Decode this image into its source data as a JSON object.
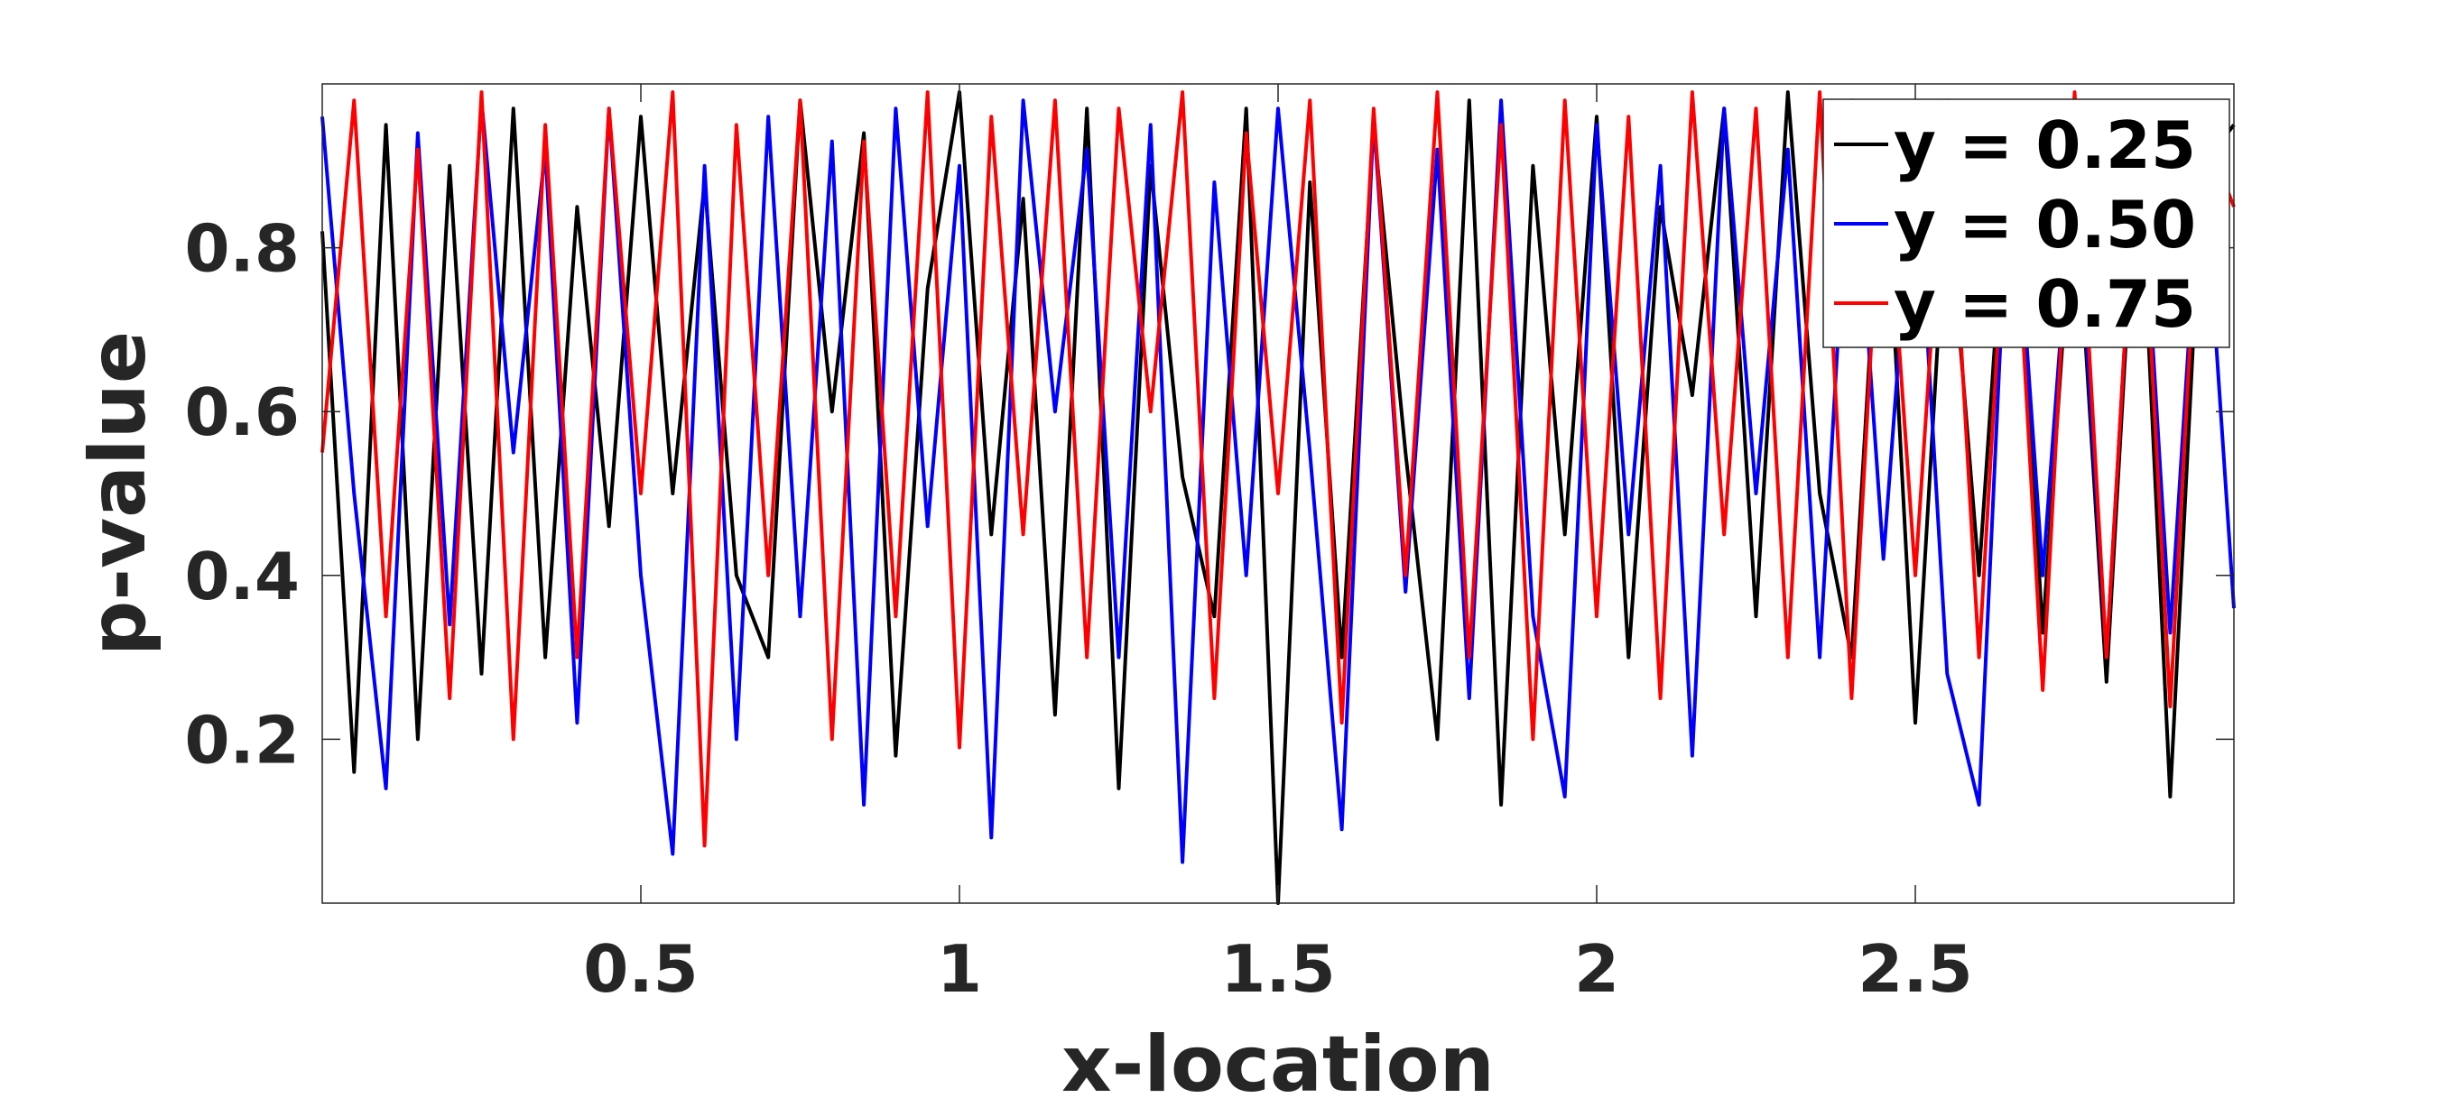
{
  "chart_data": {
    "type": "line",
    "title": "",
    "xlabel": "x-location",
    "ylabel": "p-value",
    "xlim": [
      0.0,
      3.0
    ],
    "ylim": [
      0.0,
      1.0
    ],
    "xticks": [
      0.5,
      1,
      1.5,
      2,
      2.5
    ],
    "xtick_labels": [
      "0.5",
      "1",
      "1.5",
      "2",
      "2.5"
    ],
    "yticks": [
      0.2,
      0.4,
      0.6,
      0.8
    ],
    "ytick_labels": [
      "0.2",
      "0.4",
      "0.6",
      "0.8"
    ],
    "grid": false,
    "legend_position": "top-right",
    "x": [
      0.0,
      0.05,
      0.1,
      0.15,
      0.2,
      0.25,
      0.3,
      0.35,
      0.4,
      0.45,
      0.5,
      0.55,
      0.6,
      0.65,
      0.7,
      0.75,
      0.8,
      0.85,
      0.9,
      0.95,
      1.0,
      1.05,
      1.1,
      1.15,
      1.2,
      1.25,
      1.3,
      1.35,
      1.4,
      1.45,
      1.5,
      1.55,
      1.6,
      1.65,
      1.7,
      1.75,
      1.8,
      1.85,
      1.9,
      1.95,
      2.0,
      2.05,
      2.1,
      2.15,
      2.2,
      2.25,
      2.3,
      2.35,
      2.4,
      2.45,
      2.5,
      2.55,
      2.6,
      2.65,
      2.7,
      2.75,
      2.8,
      2.85,
      2.9,
      2.95,
      3.0
    ],
    "series": [
      {
        "name": "y = 0.25",
        "color": "#000000",
        "values": [
          0.82,
          0.16,
          0.95,
          0.2,
          0.9,
          0.28,
          0.97,
          0.3,
          0.85,
          0.46,
          0.96,
          0.5,
          0.88,
          0.4,
          0.3,
          0.98,
          0.6,
          0.94,
          0.18,
          0.75,
          0.99,
          0.45,
          0.86,
          0.23,
          0.97,
          0.14,
          0.9,
          0.52,
          0.35,
          0.97,
          0.0,
          0.88,
          0.3,
          0.95,
          0.55,
          0.2,
          0.98,
          0.12,
          0.9,
          0.45,
          0.96,
          0.3,
          0.85,
          0.62,
          0.97,
          0.35,
          0.99,
          0.5,
          0.3,
          0.95,
          0.22,
          0.88,
          0.4,
          0.97,
          0.33,
          0.9,
          0.27,
          0.95,
          0.13,
          0.9,
          0.95
        ]
      },
      {
        "name": "y = 0.50",
        "color": "#0000ff",
        "values": [
          0.96,
          0.5,
          0.14,
          0.94,
          0.34,
          0.98,
          0.55,
          0.92,
          0.22,
          0.97,
          0.4,
          0.06,
          0.9,
          0.2,
          0.96,
          0.35,
          0.93,
          0.12,
          0.97,
          0.46,
          0.9,
          0.08,
          0.98,
          0.6,
          0.92,
          0.3,
          0.95,
          0.05,
          0.88,
          0.4,
          0.97,
          0.55,
          0.09,
          0.96,
          0.38,
          0.92,
          0.25,
          0.98,
          0.35,
          0.13,
          0.95,
          0.45,
          0.9,
          0.18,
          0.97,
          0.5,
          0.92,
          0.3,
          0.98,
          0.42,
          0.94,
          0.28,
          0.12,
          0.96,
          0.4,
          0.92,
          0.3,
          0.97,
          0.33,
          0.94,
          0.36
        ]
      },
      {
        "name": "y = 0.75",
        "color": "#ff0000",
        "values": [
          0.55,
          0.98,
          0.35,
          0.92,
          0.25,
          0.99,
          0.2,
          0.95,
          0.3,
          0.97,
          0.5,
          0.99,
          0.07,
          0.95,
          0.4,
          0.98,
          0.2,
          0.93,
          0.35,
          0.99,
          0.19,
          0.96,
          0.45,
          0.98,
          0.3,
          0.97,
          0.6,
          0.99,
          0.25,
          0.94,
          0.5,
          0.98,
          0.22,
          0.97,
          0.4,
          0.99,
          0.3,
          0.95,
          0.2,
          0.98,
          0.35,
          0.96,
          0.25,
          0.99,
          0.45,
          0.97,
          0.3,
          0.99,
          0.25,
          0.95,
          0.4,
          0.98,
          0.3,
          0.96,
          0.26,
          0.99,
          0.3,
          0.97,
          0.24,
          0.95,
          0.85
        ]
      }
    ]
  }
}
